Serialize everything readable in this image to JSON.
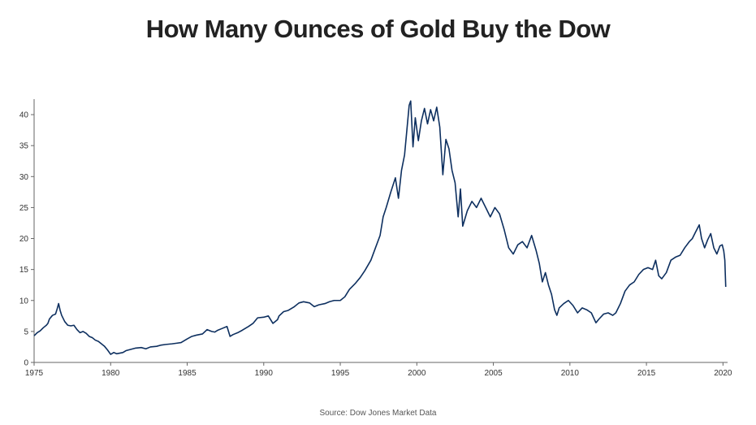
{
  "title": "How Many Ounces of Gold Buy the Dow",
  "source": "Source: Dow Jones Market Data",
  "colors": {
    "line": "#0d2f5f",
    "axis": "#666666",
    "text": "#333333"
  },
  "chart_data": {
    "type": "line",
    "title": "How Many Ounces of Gold Buy the Dow",
    "xlabel": "",
    "ylabel": "",
    "xlim": [
      1975,
      2020.3
    ],
    "ylim": [
      0,
      42.5
    ],
    "grid": false,
    "x_ticks": [
      1975,
      1980,
      1985,
      1990,
      1995,
      2000,
      2005,
      2010,
      2015,
      2020
    ],
    "y_ticks": [
      0,
      5,
      10,
      15,
      20,
      25,
      30,
      35,
      40
    ],
    "series": [
      {
        "points": [
          [
            1975.0,
            4.3
          ],
          [
            1975.2,
            4.8
          ],
          [
            1975.4,
            5.1
          ],
          [
            1975.6,
            5.6
          ],
          [
            1975.8,
            6.0
          ],
          [
            1975.9,
            6.3
          ],
          [
            1976.0,
            7.0
          ],
          [
            1976.2,
            7.6
          ],
          [
            1976.4,
            7.8
          ],
          [
            1976.5,
            8.6
          ],
          [
            1976.6,
            9.5
          ],
          [
            1976.7,
            8.4
          ],
          [
            1976.8,
            7.6
          ],
          [
            1977.0,
            6.6
          ],
          [
            1977.2,
            6.0
          ],
          [
            1977.4,
            5.9
          ],
          [
            1977.6,
            6.0
          ],
          [
            1977.8,
            5.3
          ],
          [
            1978.0,
            4.8
          ],
          [
            1978.2,
            5.0
          ],
          [
            1978.4,
            4.7
          ],
          [
            1978.6,
            4.2
          ],
          [
            1978.8,
            4.0
          ],
          [
            1979.0,
            3.6
          ],
          [
            1979.2,
            3.4
          ],
          [
            1979.4,
            3.0
          ],
          [
            1979.6,
            2.6
          ],
          [
            1979.8,
            2.0
          ],
          [
            1980.0,
            1.3
          ],
          [
            1980.2,
            1.6
          ],
          [
            1980.4,
            1.4
          ],
          [
            1980.6,
            1.5
          ],
          [
            1980.8,
            1.6
          ],
          [
            1981.0,
            1.9
          ],
          [
            1981.3,
            2.1
          ],
          [
            1981.6,
            2.3
          ],
          [
            1982.0,
            2.4
          ],
          [
            1982.3,
            2.2
          ],
          [
            1982.6,
            2.5
          ],
          [
            1983.0,
            2.6
          ],
          [
            1983.3,
            2.8
          ],
          [
            1983.6,
            2.9
          ],
          [
            1984.0,
            3.0
          ],
          [
            1984.3,
            3.1
          ],
          [
            1984.6,
            3.2
          ],
          [
            1985.0,
            3.8
          ],
          [
            1985.3,
            4.2
          ],
          [
            1985.6,
            4.4
          ],
          [
            1986.0,
            4.6
          ],
          [
            1986.3,
            5.3
          ],
          [
            1986.6,
            5.0
          ],
          [
            1986.8,
            4.9
          ],
          [
            1987.0,
            5.2
          ],
          [
            1987.3,
            5.5
          ],
          [
            1987.6,
            5.8
          ],
          [
            1987.8,
            4.2
          ],
          [
            1988.0,
            4.5
          ],
          [
            1988.3,
            4.8
          ],
          [
            1988.6,
            5.2
          ],
          [
            1989.0,
            5.8
          ],
          [
            1989.3,
            6.3
          ],
          [
            1989.6,
            7.2
          ],
          [
            1990.0,
            7.3
          ],
          [
            1990.3,
            7.5
          ],
          [
            1990.6,
            6.3
          ],
          [
            1990.9,
            6.9
          ],
          [
            1991.0,
            7.5
          ],
          [
            1991.3,
            8.2
          ],
          [
            1991.6,
            8.4
          ],
          [
            1992.0,
            9.0
          ],
          [
            1992.3,
            9.6
          ],
          [
            1992.6,
            9.8
          ],
          [
            1993.0,
            9.6
          ],
          [
            1993.3,
            9.0
          ],
          [
            1993.6,
            9.3
          ],
          [
            1994.0,
            9.5
          ],
          [
            1994.3,
            9.8
          ],
          [
            1994.6,
            10.0
          ],
          [
            1995.0,
            10.0
          ],
          [
            1995.3,
            10.6
          ],
          [
            1995.6,
            11.8
          ],
          [
            1996.0,
            12.8
          ],
          [
            1996.3,
            13.7
          ],
          [
            1996.6,
            14.8
          ],
          [
            1997.0,
            16.5
          ],
          [
            1997.3,
            18.5
          ],
          [
            1997.6,
            20.5
          ],
          [
            1997.8,
            23.5
          ],
          [
            1998.0,
            25.0
          ],
          [
            1998.3,
            27.5
          ],
          [
            1998.6,
            29.8
          ],
          [
            1998.8,
            26.5
          ],
          [
            1999.0,
            31.0
          ],
          [
            1999.2,
            33.5
          ],
          [
            1999.35,
            37.5
          ],
          [
            1999.5,
            41.5
          ],
          [
            1999.6,
            42.2
          ],
          [
            1999.75,
            34.8
          ],
          [
            1999.9,
            39.5
          ],
          [
            2000.1,
            35.8
          ],
          [
            2000.3,
            39.0
          ],
          [
            2000.5,
            41.0
          ],
          [
            2000.7,
            38.5
          ],
          [
            2000.9,
            40.8
          ],
          [
            2001.1,
            39.0
          ],
          [
            2001.3,
            41.2
          ],
          [
            2001.5,
            38.0
          ],
          [
            2001.7,
            30.3
          ],
          [
            2001.9,
            36.0
          ],
          [
            2002.1,
            34.5
          ],
          [
            2002.3,
            31.0
          ],
          [
            2002.5,
            29.0
          ],
          [
            2002.7,
            23.5
          ],
          [
            2002.85,
            28.0
          ],
          [
            2003.0,
            22.0
          ],
          [
            2003.3,
            24.5
          ],
          [
            2003.6,
            26.0
          ],
          [
            2003.9,
            25.0
          ],
          [
            2004.2,
            26.5
          ],
          [
            2004.5,
            25.0
          ],
          [
            2004.8,
            23.5
          ],
          [
            2005.1,
            25.0
          ],
          [
            2005.4,
            24.0
          ],
          [
            2005.7,
            21.5
          ],
          [
            2006.0,
            18.5
          ],
          [
            2006.3,
            17.5
          ],
          [
            2006.6,
            19.0
          ],
          [
            2006.9,
            19.5
          ],
          [
            2007.2,
            18.5
          ],
          [
            2007.5,
            20.5
          ],
          [
            2007.8,
            18.0
          ],
          [
            2008.0,
            16.0
          ],
          [
            2008.2,
            13.0
          ],
          [
            2008.4,
            14.5
          ],
          [
            2008.6,
            12.5
          ],
          [
            2008.8,
            11.0
          ],
          [
            2009.0,
            8.5
          ],
          [
            2009.15,
            7.6
          ],
          [
            2009.3,
            8.8
          ],
          [
            2009.6,
            9.5
          ],
          [
            2009.9,
            10.0
          ],
          [
            2010.2,
            9.2
          ],
          [
            2010.5,
            8.0
          ],
          [
            2010.8,
            8.8
          ],
          [
            2011.1,
            8.5
          ],
          [
            2011.4,
            8.0
          ],
          [
            2011.7,
            6.4
          ],
          [
            2011.9,
            7.0
          ],
          [
            2012.2,
            7.8
          ],
          [
            2012.5,
            8.0
          ],
          [
            2012.8,
            7.6
          ],
          [
            2013.0,
            8.0
          ],
          [
            2013.3,
            9.5
          ],
          [
            2013.6,
            11.5
          ],
          [
            2013.9,
            12.5
          ],
          [
            2014.2,
            13.0
          ],
          [
            2014.5,
            14.2
          ],
          [
            2014.8,
            15.0
          ],
          [
            2015.1,
            15.3
          ],
          [
            2015.4,
            15.0
          ],
          [
            2015.6,
            16.5
          ],
          [
            2015.8,
            14.0
          ],
          [
            2016.0,
            13.5
          ],
          [
            2016.3,
            14.5
          ],
          [
            2016.6,
            16.5
          ],
          [
            2016.9,
            17.0
          ],
          [
            2017.2,
            17.3
          ],
          [
            2017.5,
            18.5
          ],
          [
            2017.8,
            19.5
          ],
          [
            2018.0,
            20.0
          ],
          [
            2018.2,
            21.0
          ],
          [
            2018.45,
            22.2
          ],
          [
            2018.6,
            20.0
          ],
          [
            2018.8,
            18.5
          ],
          [
            2019.0,
            19.8
          ],
          [
            2019.2,
            20.8
          ],
          [
            2019.4,
            18.5
          ],
          [
            2019.6,
            17.5
          ],
          [
            2019.8,
            18.8
          ],
          [
            2019.95,
            19.0
          ],
          [
            2020.05,
            18.0
          ],
          [
            2020.12,
            16.5
          ],
          [
            2020.18,
            12.2
          ]
        ]
      }
    ]
  }
}
